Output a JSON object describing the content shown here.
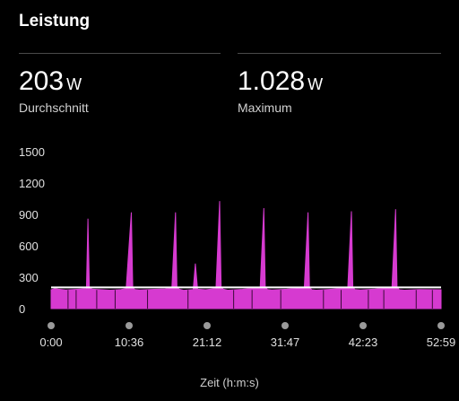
{
  "header": {
    "title": "Leistung"
  },
  "stats": {
    "average": {
      "value": "203",
      "unit": "W",
      "label": "Durchschnitt"
    },
    "maximum": {
      "value": "1.028",
      "unit": "W",
      "label": "Maximum"
    }
  },
  "colors": {
    "accent": "#d63ad0",
    "background": "#000000",
    "average_line": "#ffffff"
  },
  "chart_data": {
    "type": "area",
    "xlabel": "Zeit (h:m:s)",
    "ylabel": "",
    "x_tick_labels": [
      "0:00",
      "10:36",
      "21:12",
      "31:47",
      "42:23",
      "52:59"
    ],
    "y_tick_labels": [
      "1500",
      "1200",
      "900",
      "600",
      "300",
      "0"
    ],
    "ylim": [
      0,
      1500
    ],
    "xlim_minutes": [
      0,
      52.98
    ],
    "average_line": 203,
    "series": [
      {
        "x_minutes": [
          0,
          0.5,
          1,
          2,
          3,
          4,
          4.8,
          5.0,
          5.2,
          5.6,
          7,
          8,
          9.5,
          10.2,
          10.9,
          11.1,
          11.4,
          12,
          14,
          15.5,
          16.4,
          16.9,
          17.1,
          17.4,
          18,
          19.3,
          19.6,
          19.9,
          21,
          22.4,
          22.9,
          23.1,
          23.4,
          24,
          26,
          28.4,
          28.9,
          29.1,
          29.4,
          30,
          32,
          34.4,
          34.9,
          35.1,
          35.4,
          36,
          38,
          40.3,
          40.8,
          41.0,
          41.3,
          42,
          44,
          46.3,
          46.8,
          47.0,
          47.3,
          48,
          50,
          52.98
        ],
        "values": [
          180,
          190,
          185,
          178,
          182,
          186,
          190,
          860,
          200,
          185,
          180,
          176,
          182,
          190,
          920,
          200,
          182,
          178,
          184,
          188,
          195,
          920,
          205,
          185,
          175,
          182,
          430,
          185,
          180,
          192,
          1028,
          210,
          185,
          176,
          184,
          200,
          960,
          210,
          182,
          178,
          185,
          198,
          920,
          205,
          180,
          176,
          184,
          196,
          930,
          205,
          182,
          178,
          186,
          200,
          950,
          210,
          180,
          176,
          182,
          180
        ]
      }
    ]
  }
}
